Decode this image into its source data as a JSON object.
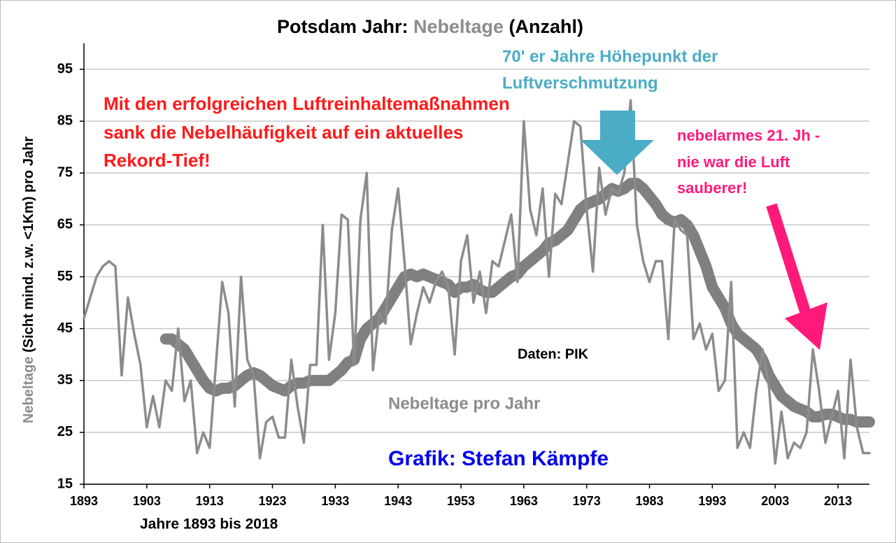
{
  "chart_data": {
    "type": "line",
    "title_parts": [
      "Potsdam Jahr: ",
      "Nebeltage",
      " (Anzahl)"
    ],
    "y_label_parts": [
      "Nebeltage",
      " (Sicht mind. z.w. <1Km) pro Jahr"
    ],
    "x_label": "Jahre 1893 bis 2018",
    "x": [
      1893,
      1894,
      1895,
      1896,
      1897,
      1898,
      1899,
      1900,
      1901,
      1902,
      1903,
      1904,
      1905,
      1906,
      1907,
      1908,
      1909,
      1910,
      1911,
      1912,
      1913,
      1914,
      1915,
      1916,
      1917,
      1918,
      1919,
      1920,
      1921,
      1922,
      1923,
      1924,
      1925,
      1926,
      1927,
      1928,
      1929,
      1930,
      1931,
      1932,
      1933,
      1934,
      1935,
      1936,
      1937,
      1938,
      1939,
      1940,
      1941,
      1942,
      1943,
      1944,
      1945,
      1946,
      1947,
      1948,
      1949,
      1950,
      1951,
      1952,
      1953,
      1954,
      1955,
      1956,
      1957,
      1958,
      1959,
      1960,
      1961,
      1962,
      1963,
      1964,
      1965,
      1966,
      1967,
      1968,
      1969,
      1970,
      1971,
      1972,
      1973,
      1974,
      1975,
      1976,
      1977,
      1978,
      1979,
      1980,
      1981,
      1982,
      1983,
      1984,
      1985,
      1986,
      1987,
      1988,
      1989,
      1990,
      1991,
      1992,
      1993,
      1994,
      1995,
      1996,
      1997,
      1998,
      1999,
      2000,
      2001,
      2002,
      2003,
      2004,
      2005,
      2006,
      2007,
      2008,
      2009,
      2010,
      2011,
      2012,
      2013,
      2014,
      2015,
      2016,
      2017,
      2018
    ],
    "series": [
      {
        "name": "Nebeltage pro Jahr",
        "color": "#8c8c8c",
        "values": [
          47,
          51,
          55,
          57,
          58,
          57,
          36,
          51,
          44,
          38,
          26,
          32,
          26,
          35,
          33,
          45,
          31,
          35,
          21,
          25,
          22,
          38,
          54,
          48,
          30,
          55,
          39,
          36,
          20,
          27,
          28,
          24,
          24,
          39,
          30,
          23,
          38,
          38,
          65,
          39,
          48,
          67,
          66,
          38,
          66,
          75,
          37,
          48,
          46,
          64,
          72,
          58,
          42,
          48,
          53,
          50,
          54,
          56,
          53,
          40,
          58,
          63,
          50,
          56,
          48,
          58,
          57,
          62,
          67,
          54,
          85,
          68,
          63,
          72,
          55,
          71,
          69,
          77,
          85,
          84,
          68,
          56,
          76,
          67,
          72,
          71,
          75,
          89,
          65,
          58,
          54,
          58,
          58,
          43,
          66,
          64,
          63,
          43,
          46,
          41,
          44,
          33,
          35,
          54,
          22,
          25,
          22,
          33,
          41,
          34,
          19,
          29,
          20,
          23,
          22,
          25,
          41,
          33,
          23,
          28,
          33,
          20,
          39,
          26,
          21,
          21
        ]
      },
      {
        "color": "#808080",
        "values": [
          null,
          null,
          null,
          null,
          null,
          null,
          null,
          null,
          null,
          null,
          null,
          null,
          null,
          43,
          43,
          42,
          41,
          39,
          37,
          35,
          33.5,
          33,
          33.5,
          33.5,
          34,
          35,
          36,
          36.5,
          36,
          35,
          34,
          33.5,
          33,
          34,
          34.5,
          34.5,
          35,
          35,
          35,
          35,
          36,
          37,
          38.5,
          39,
          43,
          45,
          46,
          47,
          49,
          51,
          53,
          55,
          55.5,
          55,
          55.5,
          55,
          54.5,
          54,
          53.5,
          52,
          53,
          53,
          53.5,
          52.5,
          52,
          52,
          53,
          54,
          55,
          55.5,
          57,
          58,
          59,
          60,
          61.5,
          62,
          63,
          64,
          66,
          68,
          69,
          69.5,
          70,
          71,
          72,
          71.5,
          72,
          73,
          73,
          72,
          70.5,
          69,
          67,
          66,
          65.5,
          66,
          65,
          63,
          60,
          57,
          53,
          51,
          49,
          46,
          44,
          43,
          42,
          41,
          39,
          36,
          34,
          32,
          31,
          30,
          29.5,
          29,
          28,
          28,
          28.5,
          28.5,
          28,
          27.5,
          27.5,
          27,
          27,
          27
        ]
      }
    ],
    "xlim": [
      1893,
      2018
    ],
    "ylim": [
      15,
      100
    ],
    "xticks": [
      1893,
      1903,
      1913,
      1923,
      1933,
      1943,
      1953,
      1963,
      1973,
      1983,
      1993,
      2003,
      2013
    ],
    "yticks": [
      15,
      25,
      35,
      45,
      55,
      65,
      75,
      85,
      95
    ],
    "grid": true,
    "annotations": [
      {
        "lines": [
          "Mit den erfolgreichen Luftreinhaltemaßnahmen",
          "sank die Nebelhäufigkeit auf ein aktuelles",
          "Rekord-Tief!"
        ],
        "color": "#ff1a1a"
      },
      {
        "lines": [
          "70' er Jahre Höhepunkt der",
          "Luftverschmutzung"
        ],
        "color": "#4bacc6"
      },
      {
        "lines": [
          "nebelarmes 21. Jh -",
          "nie war die Luft",
          "sauberer!"
        ],
        "color": "#ff1a7a"
      },
      {
        "lines": [
          "Daten: PIK"
        ],
        "color": "#000000"
      },
      {
        "lines": [
          "Grafik: Stefan Kämpfe"
        ],
        "color": "#0000ee"
      }
    ]
  }
}
